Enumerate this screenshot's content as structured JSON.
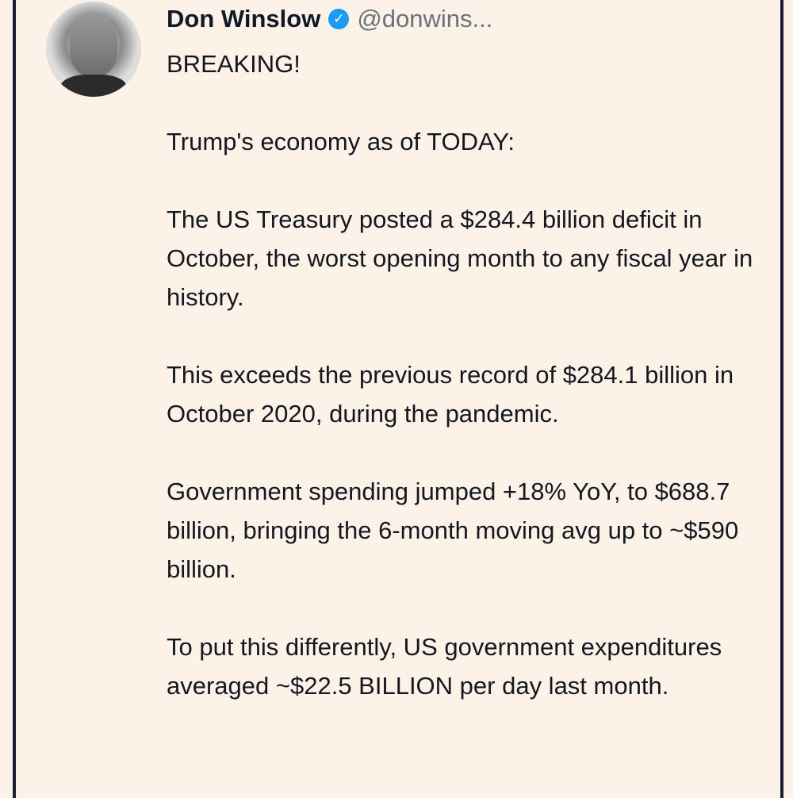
{
  "tweet": {
    "author_name": "Don Winslow",
    "verified_icon": "verified-badge-icon",
    "handle": "@donwins...",
    "paragraphs": [
      "BREAKING!",
      "Trump's economy as of TODAY:",
      "The US Treasury posted a $284.4 billion deficit in October, the worst opening month to any fiscal year in history.",
      "This exceeds the previous record of $284.1 billion in October 2020, during the pandemic.",
      "Government spending jumped +18% YoY, to $688.7 billion, bringing the 6-month moving avg up to ~$590 billion.",
      "To put this differently, US government expenditures averaged ~$22.5 BILLION per day last month."
    ]
  },
  "colors": {
    "background": "#fdf2e8",
    "text": "#14171f",
    "verified": "#1d9bf0",
    "handle": "#6b7178"
  }
}
